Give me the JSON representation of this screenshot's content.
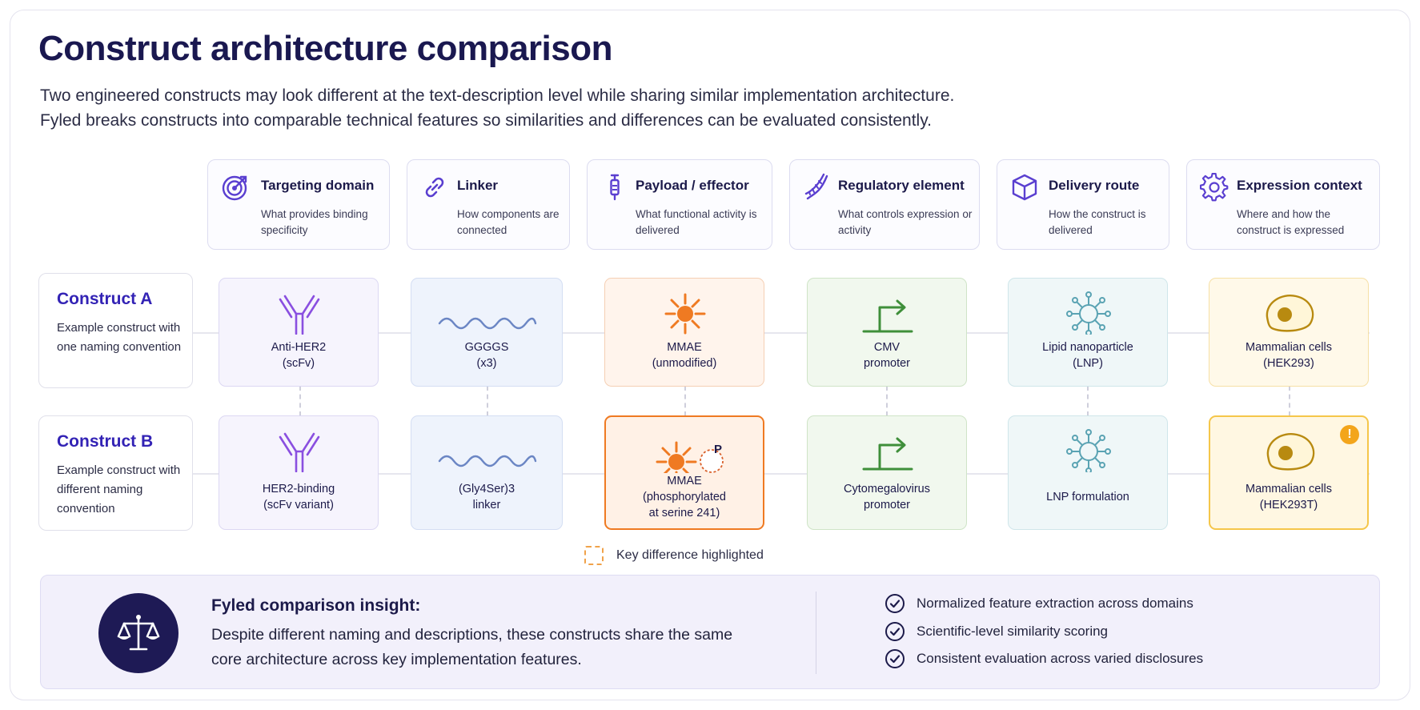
{
  "title": "Construct architecture comparison",
  "subtitle_lines": [
    "Two engineered constructs may look different at the text-description level while sharing similar implementation architecture.",
    "Fyled breaks constructs into comparable technical features so similarities and differences can be evaluated consistently."
  ],
  "features": [
    {
      "icon": "target-icon",
      "title": "Targeting domain",
      "desc": "What provides binding specificity"
    },
    {
      "icon": "link-icon",
      "title": "Linker",
      "desc": "How components are connected"
    },
    {
      "icon": "syringe-icon",
      "title": "Payload / effector",
      "desc": "What functional activity is delivered"
    },
    {
      "icon": "dna-icon",
      "title": "Regulatory element",
      "desc": "What controls expression or activity"
    },
    {
      "icon": "cube-icon",
      "title": "Delivery route",
      "desc": "How the construct is delivered"
    },
    {
      "icon": "gear-icon",
      "title": "Expression context",
      "desc": "Where and how the construct is expressed"
    }
  ],
  "constructs": [
    {
      "name": "Construct A",
      "desc": "Example construct with one naming convention",
      "cells": [
        {
          "icon": "antibody-icon",
          "text": "Anti-HER2\n(scFv)"
        },
        {
          "icon": "wave-linker-icon",
          "text": "GGGGS\n(x3)"
        },
        {
          "icon": "payload-star-icon",
          "text": "MMAE\n(unmodified)"
        },
        {
          "icon": "promoter-arrow-icon",
          "text": "CMV\npromoter"
        },
        {
          "icon": "nanoparticle-icon",
          "text": "Lipid nanoparticle\n(LNP)"
        },
        {
          "icon": "cell-icon",
          "text": "Mammalian cells\n(HEK293)"
        }
      ]
    },
    {
      "name": "Construct B",
      "desc": "Example construct with different naming convention",
      "cells": [
        {
          "icon": "antibody-icon",
          "text": "HER2-binding\n(scFv variant)"
        },
        {
          "icon": "wave-linker-icon",
          "text": "(Gly4Ser)3\nlinker"
        },
        {
          "icon": "payload-star-phospho-icon",
          "badge": "P",
          "text": "MMAE\n(phosphorylated\nat serine 241)",
          "highlight": true
        },
        {
          "icon": "promoter-arrow-icon",
          "text": "Cytomegalovirus\npromoter"
        },
        {
          "icon": "nanoparticle-icon",
          "text": "LNP formulation"
        },
        {
          "icon": "cell-icon",
          "text": "Mammalian cells\n(HEK293T)",
          "highlight": true,
          "warning": "!"
        }
      ]
    }
  ],
  "legend": {
    "label": "Key difference highlighted"
  },
  "insight": {
    "icon": "scales-icon",
    "title": "Fyled comparison insight:",
    "text": "Despite different naming and descriptions, these constructs share the same core architecture across key implementation features.",
    "checks": [
      "Normalized feature extraction across domains",
      "Scientific-level similarity scoring",
      "Consistent evaluation across varied disclosures"
    ]
  },
  "colors": {
    "accent": "#3323b5",
    "navy": "#1e1a55",
    "highlight_orange": "#ef7a22",
    "highlight_yellow": "#f5c64a"
  }
}
